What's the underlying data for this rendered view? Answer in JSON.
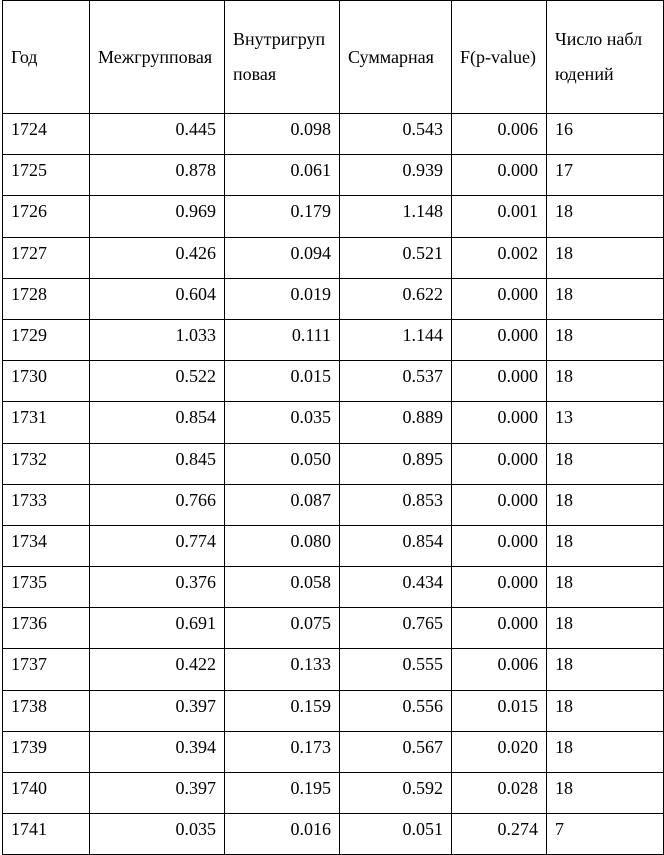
{
  "table": {
    "headers": [
      "Год",
      "Межгрупповая",
      "Внутригрупповая",
      "Суммарная",
      "F(p-value)",
      "Число наблюдений"
    ],
    "rows": [
      [
        "1724",
        "0.445",
        "0.098",
        "0.543",
        "0.006",
        "16"
      ],
      [
        "1725",
        "0.878",
        "0.061",
        "0.939",
        "0.000",
        "17"
      ],
      [
        "1726",
        "0.969",
        "0.179",
        "1.148",
        "0.001",
        "18"
      ],
      [
        "1727",
        "0.426",
        "0.094",
        "0.521",
        "0.002",
        "18"
      ],
      [
        "1728",
        "0.604",
        "0.019",
        "0.622",
        "0.000",
        "18"
      ],
      [
        "1729",
        "1.033",
        "0.111",
        "1.144",
        "0.000",
        "18"
      ],
      [
        "1730",
        "0.522",
        "0.015",
        "0.537",
        "0.000",
        "18"
      ],
      [
        "1731",
        "0.854",
        "0.035",
        "0.889",
        "0.000",
        "13"
      ],
      [
        "1732",
        "0.845",
        "0.050",
        "0.895",
        "0.000",
        "18"
      ],
      [
        "1733",
        "0.766",
        "0.087",
        "0.853",
        "0.000",
        "18"
      ],
      [
        "1734",
        "0.774",
        "0.080",
        "0.854",
        "0.000",
        "18"
      ],
      [
        "1735",
        "0.376",
        "0.058",
        "0.434",
        "0.000",
        "18"
      ],
      [
        "1736",
        "0.691",
        "0.075",
        "0.765",
        "0.000",
        "18"
      ],
      [
        "1737",
        "0.422",
        "0.133",
        "0.555",
        "0.006",
        "18"
      ],
      [
        "1738",
        "0.397",
        "0.159",
        "0.556",
        "0.015",
        "18"
      ],
      [
        "1739",
        "0.394",
        "0.173",
        "0.567",
        "0.020",
        "18"
      ],
      [
        "1740",
        "0.397",
        "0.195",
        "0.592",
        "0.028",
        "18"
      ],
      [
        "1741",
        "0.035",
        "0.016",
        "0.051",
        "0.274",
        "7"
      ]
    ]
  }
}
